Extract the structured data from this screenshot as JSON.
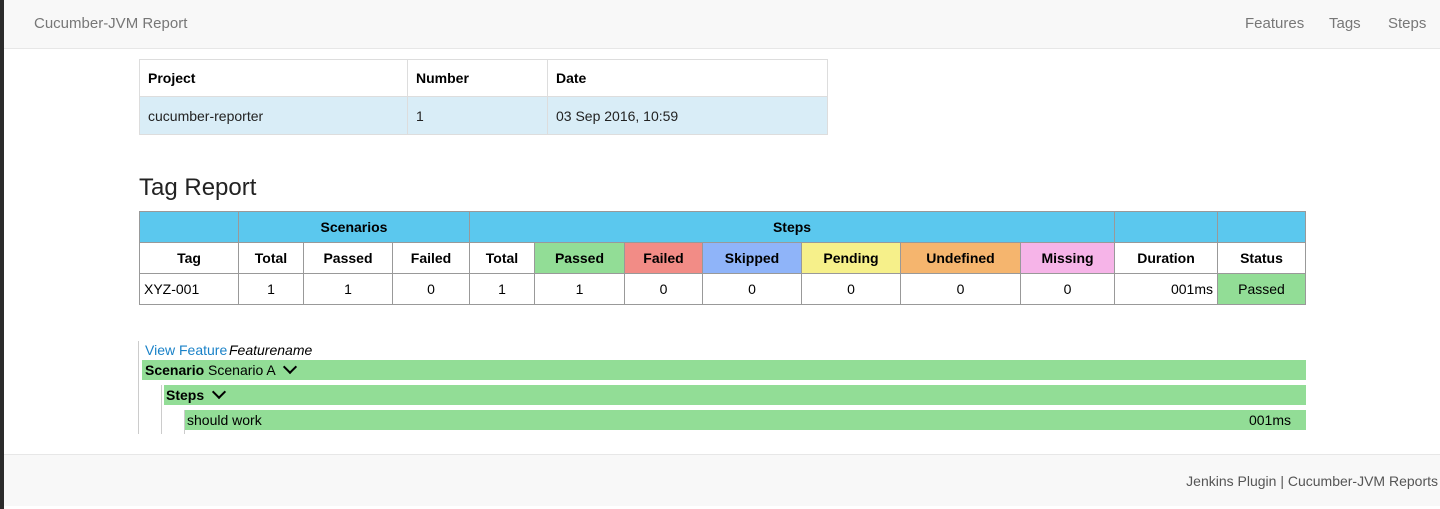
{
  "navbar": {
    "brand": "Cucumber-JVM Report",
    "links": [
      "Features",
      "Tags",
      "Steps"
    ]
  },
  "project_table": {
    "headers": [
      "Project",
      "Number",
      "Date"
    ],
    "row": [
      "cucumber-reporter",
      "1",
      "03 Sep 2016, 10:59"
    ]
  },
  "tag_report": {
    "title": "Tag Report",
    "groups": {
      "scenarios": "Scenarios",
      "steps": "Steps"
    },
    "headers": [
      "Tag",
      "Total",
      "Passed",
      "Failed",
      "Total",
      "Passed",
      "Failed",
      "Skipped",
      "Pending",
      "Undefined",
      "Missing",
      "Duration",
      "Status"
    ],
    "row": [
      "XYZ-001",
      "1",
      "1",
      "0",
      "1",
      "1",
      "0",
      "0",
      "0",
      "0",
      "0",
      "001ms",
      "Passed"
    ],
    "colors": {
      "group_header": "#5bc8ee",
      "passed": "#92dd96",
      "failed": "#f28c86",
      "skipped": "#8fb4f9",
      "pending": "#f6f08a",
      "undefined": "#f5b56e",
      "missing": "#f6b4e8"
    }
  },
  "feature": {
    "view_link": "View Feature",
    "name": "Featurename",
    "scenario_keyword": "Scenario",
    "scenario_name": "Scenario A",
    "steps_label": "Steps",
    "step_text": "should work",
    "step_duration": "001ms"
  },
  "footer": {
    "text": "Jenkins Plugin | Cucumber-JVM Reports"
  }
}
